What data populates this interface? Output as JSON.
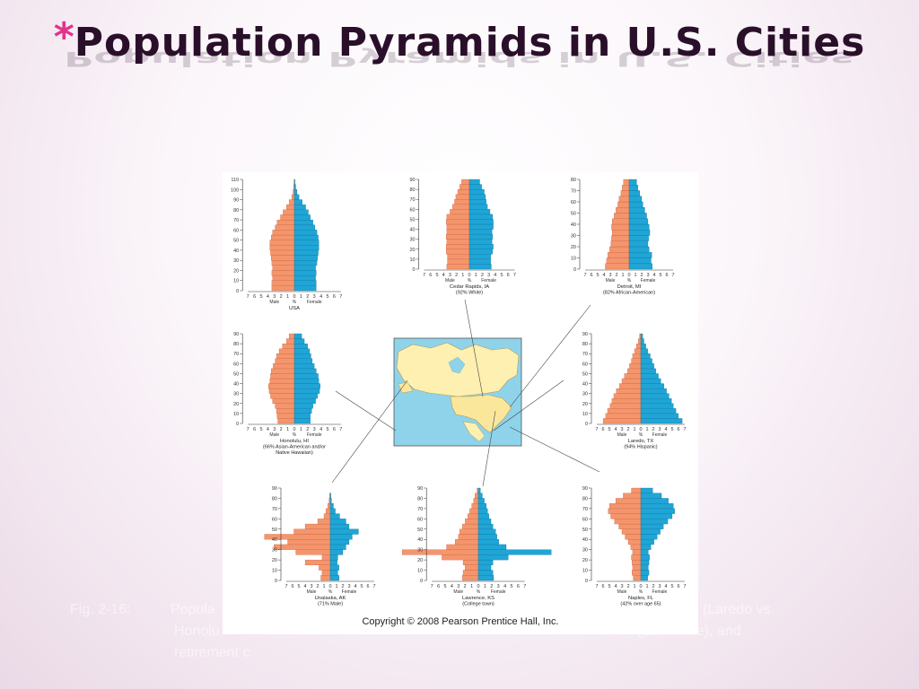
{
  "title": {
    "star": "*",
    "text": "Population Pyramids in U.S. Cities"
  },
  "caption": {
    "prefix": "Fig. 2-16:",
    "line1_left": "Popula",
    "line1_right": "(Laredo vs.",
    "line2_left": "Honolu",
    "line2_right": "(Lawrence), and",
    "line3_left": "retirement c"
  },
  "copyright": "Copyright © 2008 Pearson Prentice Hall, Inc.",
  "colors": {
    "male": "#f4956c",
    "female": "#1fa5d6",
    "map_water": "#8fd3ea",
    "map_land": "#fdf0b0",
    "map_us": "#fbe79b"
  },
  "chart_data": [
    {
      "type": "bar",
      "id": "usa",
      "name": "USA",
      "subtitle": "",
      "ymax": 110,
      "yticks": [
        0,
        10,
        20,
        30,
        40,
        50,
        60,
        70,
        80,
        90,
        100,
        110
      ],
      "xticks": [
        "7",
        "6",
        "5",
        "4",
        "3",
        "2",
        "1",
        "0",
        "1",
        "2",
        "3",
        "4",
        "5",
        "6",
        "7"
      ],
      "xmax": 7,
      "xlabel_male": "Male",
      "xlabel_mid": "%",
      "xlabel_female": "Female",
      "male": [
        3.4,
        3.4,
        3.3,
        3.4,
        3.3,
        3.4,
        3.5,
        3.6,
        3.7,
        3.7,
        3.5,
        3.3,
        2.9,
        2.6,
        2.1,
        1.7,
        1.2,
        0.8,
        0.4,
        0.2,
        0.1,
        0.05
      ],
      "female": [
        3.3,
        3.3,
        3.2,
        3.3,
        3.2,
        3.4,
        3.5,
        3.6,
        3.7,
        3.7,
        3.6,
        3.4,
        3.1,
        2.8,
        2.4,
        2.1,
        1.7,
        1.2,
        0.7,
        0.4,
        0.2,
        0.1
      ]
    },
    {
      "type": "bar",
      "id": "cedar",
      "name": "Cedar Rapids, IA",
      "subtitle": "(92% White)",
      "ymax": 90,
      "yticks": [
        0,
        10,
        20,
        30,
        40,
        50,
        60,
        70,
        80,
        90
      ],
      "xticks": [
        "7",
        "6",
        "5",
        "4",
        "3",
        "2",
        "1",
        "0",
        "1",
        "2",
        "3",
        "4",
        "5",
        "6",
        "7"
      ],
      "xmax": 7,
      "xlabel_male": "Male",
      "xlabel_mid": "%",
      "xlabel_female": "Female",
      "male": [
        3.5,
        3.4,
        3.4,
        3.6,
        3.6,
        3.5,
        3.6,
        3.5,
        3.5,
        3.6,
        3.5,
        3.0,
        2.6,
        2.3,
        2.1,
        1.8,
        1.5,
        1.2
      ],
      "female": [
        3.4,
        3.3,
        3.3,
        3.6,
        3.7,
        3.5,
        3.6,
        3.5,
        3.7,
        3.7,
        3.6,
        3.2,
        2.8,
        2.6,
        2.5,
        2.3,
        1.9,
        1.6
      ]
    },
    {
      "type": "bar",
      "id": "detroit",
      "name": "Detroit, MI",
      "subtitle": "(82% African-American)",
      "ymax": 80,
      "yticks": [
        0,
        10,
        20,
        30,
        40,
        50,
        60,
        70,
        80
      ],
      "xticks": [
        "7",
        "6",
        "5",
        "4",
        "3",
        "2",
        "1",
        "0",
        "1",
        "2",
        "3",
        "4",
        "5",
        "6",
        "7"
      ],
      "xmax": 7,
      "xlabel_male": "Male",
      "xlabel_mid": "%",
      "xlabel_female": "Female",
      "male": [
        3.8,
        3.6,
        3.4,
        3.1,
        2.9,
        2.8,
        2.7,
        2.8,
        2.7,
        2.4,
        2.1,
        1.8,
        1.6,
        1.3,
        1.1,
        0.9
      ],
      "female": [
        3.7,
        3.5,
        3.6,
        3.2,
        3.0,
        3.1,
        3.3,
        3.2,
        3.0,
        2.8,
        2.5,
        2.2,
        2.0,
        1.7,
        1.4,
        1.2
      ]
    },
    {
      "type": "bar",
      "id": "honolulu",
      "name": "Honolulu, HI",
      "subtitle": "(66% Asian-American and/or Native Hawaiian)",
      "ymax": 90,
      "yticks": [
        0,
        10,
        20,
        30,
        40,
        50,
        60,
        70,
        80,
        90
      ],
      "xticks": [
        "7",
        "6",
        "5",
        "4",
        "3",
        "2",
        "1",
        "0",
        "1",
        "2",
        "3",
        "4",
        "5",
        "6",
        "7"
      ],
      "xmax": 7,
      "xlabel_male": "Male",
      "xlabel_mid": "%",
      "xlabel_female": "Female",
      "male": [
        2.5,
        2.6,
        2.7,
        2.9,
        3.3,
        3.6,
        3.8,
        3.9,
        3.7,
        3.6,
        3.5,
        3.2,
        2.9,
        2.7,
        2.3,
        1.8,
        1.2,
        0.8
      ],
      "female": [
        2.4,
        2.4,
        2.6,
        2.8,
        3.2,
        3.5,
        3.8,
        3.9,
        3.7,
        3.6,
        3.3,
        3.0,
        2.7,
        2.5,
        2.3,
        2.0,
        1.5,
        1.1
      ]
    },
    {
      "type": "bar",
      "id": "laredo",
      "name": "Laredo, TX",
      "subtitle": "(94% Hispanic)",
      "ymax": 90,
      "yticks": [
        0,
        10,
        20,
        30,
        40,
        50,
        60,
        70,
        80,
        90
      ],
      "xticks": [
        "7",
        "6",
        "5",
        "4",
        "3",
        "2",
        "1",
        "0",
        "1",
        "2",
        "3",
        "4",
        "5",
        "6",
        "7"
      ],
      "xmax": 7,
      "xlabel_male": "Male",
      "xlabel_mid": "%",
      "xlabel_female": "Female",
      "male": [
        6.0,
        5.6,
        5.3,
        4.9,
        4.6,
        4.3,
        3.9,
        3.4,
        3.0,
        2.6,
        2.1,
        1.8,
        1.5,
        1.3,
        1.0,
        0.7,
        0.4,
        0.2
      ],
      "female": [
        6.6,
        6.0,
        5.6,
        5.2,
        4.9,
        4.5,
        4.1,
        3.7,
        3.2,
        2.8,
        2.4,
        2.1,
        1.8,
        1.5,
        1.1,
        0.8,
        0.5,
        0.3
      ]
    },
    {
      "type": "bar",
      "id": "unalaska",
      "name": "Unalaska, AK",
      "subtitle": "(71% Male)",
      "ymax": 90,
      "yticks": [
        0,
        10,
        20,
        30,
        40,
        50,
        60,
        70,
        80,
        90
      ],
      "xticks": [
        "7",
        "6",
        "5",
        "4",
        "3",
        "2",
        "1",
        "0",
        "1",
        "2",
        "3",
        "4",
        "5",
        "6",
        "7"
      ],
      "xmax": 7,
      "xlabel_male": "Male",
      "xlabel_mid": "%",
      "xlabel_female": "Female",
      "male": [
        1.5,
        1.3,
        1.8,
        4.0,
        1.3,
        5.5,
        9.0,
        6.8,
        10.5,
        5.8,
        4.0,
        2.0,
        1.0,
        0.7,
        0.4,
        0.2,
        0.1
      ],
      "female": [
        1.4,
        1.2,
        1.4,
        1.1,
        1.2,
        2.0,
        2.5,
        3.0,
        3.5,
        4.5,
        3.0,
        2.5,
        1.5,
        0.8,
        0.5,
        0.2,
        0.1
      ]
    },
    {
      "type": "bar",
      "id": "lawrence",
      "name": "Lawrence, KS",
      "subtitle": "(College town)",
      "ymax": 90,
      "yticks": [
        0,
        10,
        20,
        30,
        40,
        50,
        60,
        70,
        80,
        90
      ],
      "xticks": [
        "7",
        "6",
        "5",
        "4",
        "3",
        "2",
        "1",
        "0",
        "1",
        "2",
        "3",
        "4",
        "5",
        "6",
        "7"
      ],
      "xmax": 7,
      "xlabel_male": "Male",
      "xlabel_mid": "%",
      "xlabel_female": "Female",
      "male": [
        2.4,
        2.3,
        2.0,
        2.3,
        5.5,
        11.5,
        4.8,
        3.5,
        3.0,
        2.8,
        2.4,
        2.0,
        1.6,
        1.3,
        1.0,
        0.7,
        0.5,
        0.2
      ],
      "female": [
        2.3,
        2.2,
        1.9,
        2.2,
        4.5,
        11.0,
        4.2,
        3.1,
        2.8,
        2.6,
        2.2,
        1.9,
        1.6,
        1.4,
        1.2,
        0.9,
        0.6,
        0.3
      ]
    },
    {
      "type": "bar",
      "id": "naples",
      "name": "Naples, FL",
      "subtitle": "(42% over age 65)",
      "ymax": 90,
      "yticks": [
        0,
        10,
        20,
        30,
        40,
        50,
        60,
        70,
        80,
        90
      ],
      "xticks": [
        "7",
        "6",
        "5",
        "4",
        "3",
        "2",
        "1",
        "0",
        "1",
        "2",
        "3",
        "4",
        "5",
        "6",
        "7"
      ],
      "xmax": 7,
      "xlabel_male": "Male",
      "xlabel_mid": "%",
      "xlabel_female": "Female",
      "male": [
        1.2,
        1.4,
        1.3,
        1.4,
        1.5,
        1.3,
        1.6,
        2.0,
        2.5,
        3.0,
        3.5,
        4.2,
        4.8,
        5.2,
        5.0,
        4.0,
        2.8,
        1.5
      ],
      "female": [
        1.1,
        1.3,
        1.2,
        1.3,
        1.4,
        1.2,
        1.6,
        2.1,
        2.6,
        3.1,
        3.6,
        4.3,
        5.0,
        5.4,
        5.2,
        4.4,
        3.3,
        1.9
      ]
    }
  ]
}
